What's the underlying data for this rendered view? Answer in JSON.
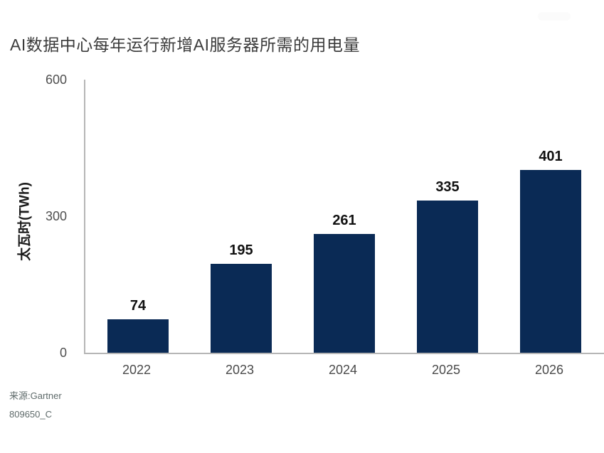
{
  "title": "AI数据中心每年运行新增AI服务器所需的用电量",
  "source": {
    "line1": "来源:Gartner",
    "line2": "809650_C"
  },
  "colors": {
    "bar": "#0a2a55",
    "axis": "#b6b6b6",
    "title_text": "#3b3b3b",
    "tick_text": "#4f4f4f",
    "value_text": "#111111",
    "source_text": "#5e6a6a"
  },
  "chart_data": {
    "type": "bar",
    "title": "AI数据中心每年运行新增AI服务器所需的用电量",
    "categories": [
      "2022",
      "2023",
      "2024",
      "2025",
      "2026"
    ],
    "values": [
      74,
      195,
      261,
      335,
      401
    ],
    "xlabel": "",
    "ylabel": "太瓦时(TWh)",
    "ylim": [
      0,
      600
    ],
    "yticks": [
      0,
      300,
      600
    ],
    "grid": false,
    "legend": "none",
    "bar_color": "#0a2a55",
    "source": "来源:Gartner",
    "chart_id": "809650_C"
  }
}
